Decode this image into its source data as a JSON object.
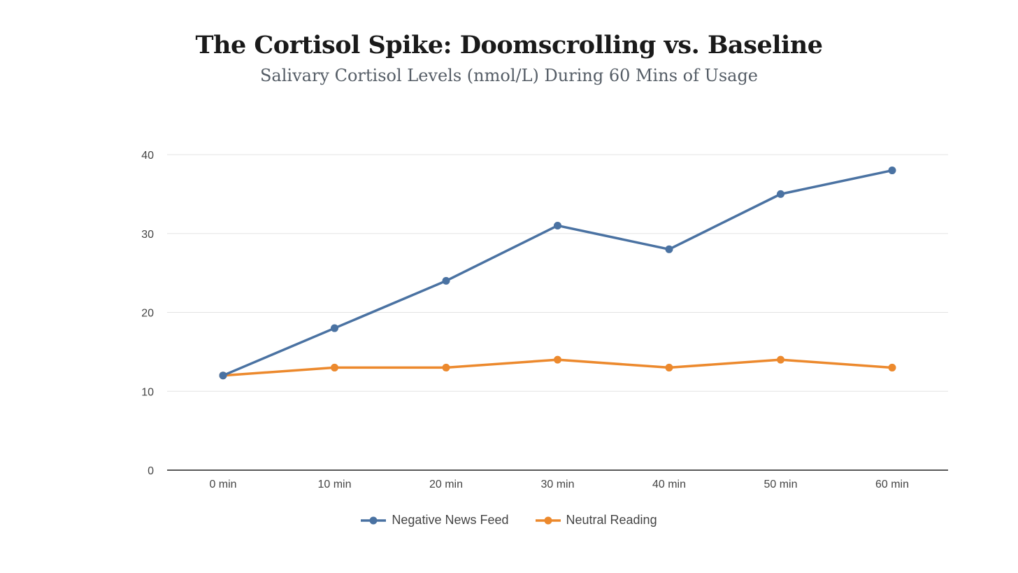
{
  "chart_data": {
    "type": "line",
    "title": "The Cortisol Spike: Doomscrolling vs. Baseline",
    "subtitle": "Salivary Cortisol Levels (nmol/L) During 60 Mins of Usage",
    "xlabel": "",
    "ylabel": "",
    "categories": [
      "0 min",
      "10 min",
      "20 min",
      "30 min",
      "40 min",
      "50 min",
      "60 min"
    ],
    "ylim": [
      0,
      40
    ],
    "yticks": [
      0,
      10,
      20,
      30,
      40
    ],
    "grid": true,
    "legend_position": "bottom",
    "series": [
      {
        "name": "Negative News Feed",
        "color": "#4a72a2",
        "values": [
          12,
          18,
          24,
          31,
          28,
          35,
          38
        ]
      },
      {
        "name": "Neutral Reading",
        "color": "#ec892d",
        "values": [
          12,
          13,
          13,
          14,
          13,
          14,
          13
        ]
      }
    ]
  }
}
